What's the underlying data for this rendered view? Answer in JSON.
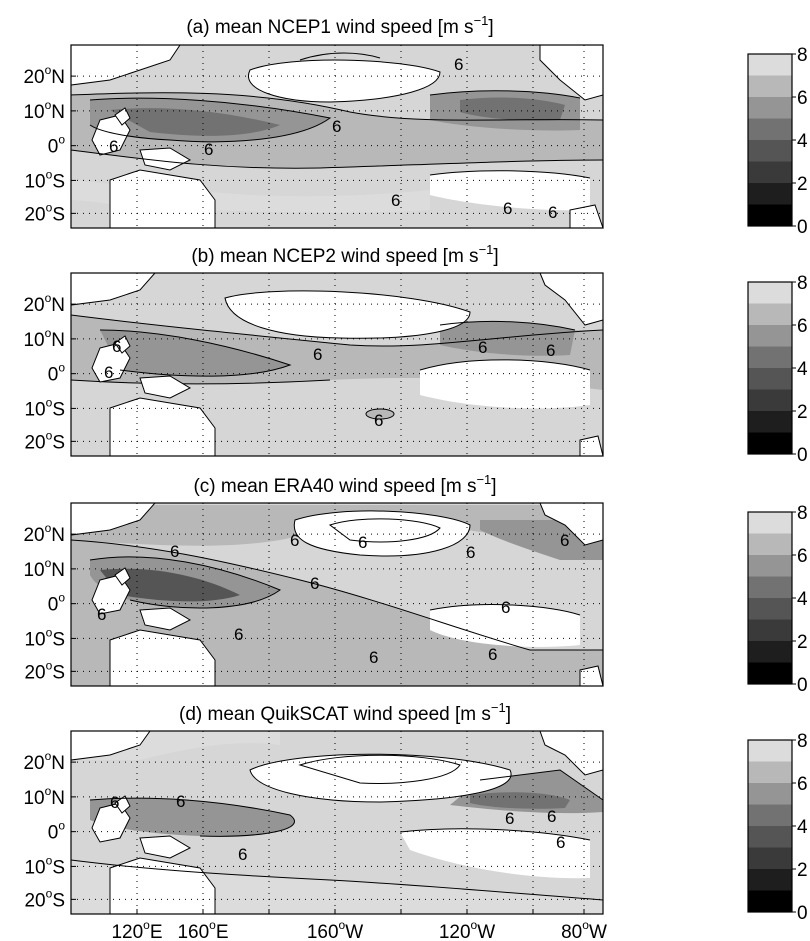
{
  "chart_data": [
    {
      "type": "heatmap",
      "panel": "a",
      "title": "(a) mean NCEP1 wind speed [m s",
      "title_sup": "−1",
      "title_end": "]",
      "colorbar_ticks": [
        "0",
        "2",
        "4",
        "6",
        "8"
      ],
      "contour_label": "6"
    },
    {
      "type": "heatmap",
      "panel": "b",
      "title": "(b) mean NCEP2 wind speed [m s",
      "title_sup": "−1",
      "title_end": "]",
      "colorbar_ticks": [
        "0",
        "2",
        "4",
        "6",
        "8"
      ],
      "contour_label": "6"
    },
    {
      "type": "heatmap",
      "panel": "c",
      "title": "(c) mean ERA40 wind speed [m s",
      "title_sup": "−1",
      "title_end": "]",
      "colorbar_ticks": [
        "0",
        "2",
        "4",
        "6",
        "8"
      ],
      "contour_label": "6"
    },
    {
      "type": "heatmap",
      "panel": "d",
      "title": "(d) mean QuikSCAT wind speed [m s",
      "title_sup": "−1",
      "title_end": "]",
      "colorbar_ticks": [
        "0",
        "2",
        "4",
        "6",
        "8"
      ],
      "contour_label": "6"
    }
  ],
  "y_axis_labels": [
    {
      "num": "20",
      "sup": "o",
      "hem": "N"
    },
    {
      "num": "10",
      "sup": "o",
      "hem": "N"
    },
    {
      "num": "0",
      "sup": "o",
      "hem": ""
    },
    {
      "num": "10",
      "sup": "o",
      "hem": "S"
    },
    {
      "num": "20",
      "sup": "o",
      "hem": "S"
    }
  ],
  "x_axis_labels": [
    {
      "num": "120",
      "sup": "o",
      "hem": "E"
    },
    {
      "num": "160",
      "sup": "o",
      "hem": "E"
    },
    {
      "num": "160",
      "sup": "o",
      "hem": "W"
    },
    {
      "num": "120",
      "sup": "o",
      "hem": "W"
    },
    {
      "num": "80",
      "sup": "o",
      "hem": "W"
    }
  ],
  "colorbar_levels": [
    0,
    1,
    2,
    3,
    4,
    5,
    6,
    7,
    8
  ],
  "colors": {
    "level_0_1": "#000000",
    "level_1_2": "#1e1e1e",
    "level_2_3": "#3a3a3a",
    "level_3_4": "#555555",
    "level_4_5": "#727272",
    "level_5_6": "#959595",
    "level_6_7": "#b8b8b8",
    "level_7_8": "#dcdcdc",
    "level_8": "#ffffff"
  }
}
